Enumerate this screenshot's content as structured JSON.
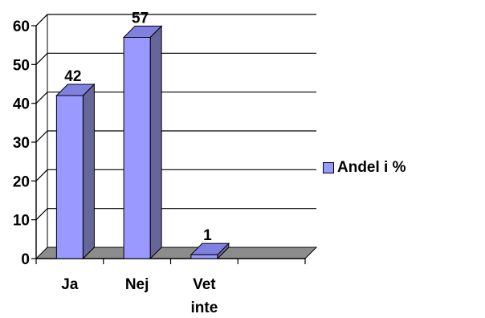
{
  "chart_data": {
    "type": "bar",
    "categories": [
      "Ja",
      "Nej",
      "Vet inte"
    ],
    "category_lines": [
      [
        "Ja"
      ],
      [
        "Nej"
      ],
      [
        "Vet",
        "inte"
      ]
    ],
    "series": [
      {
        "name": "Andel i %",
        "values": [
          42,
          57,
          1
        ]
      }
    ],
    "data_labels": [
      "42",
      "57",
      "1"
    ],
    "ylim": [
      0,
      60
    ],
    "yticks": [
      0,
      10,
      20,
      30,
      40,
      50,
      60
    ],
    "grid": true,
    "style": "3d-column",
    "legend_position": "right",
    "title": "",
    "xlabel": "",
    "ylabel": ""
  },
  "colors": {
    "bar_front": "#9999ff",
    "bar_side": "#666699",
    "bar_top": "#8080e0",
    "floor": "#8c8c8c",
    "grid": "#000000"
  }
}
